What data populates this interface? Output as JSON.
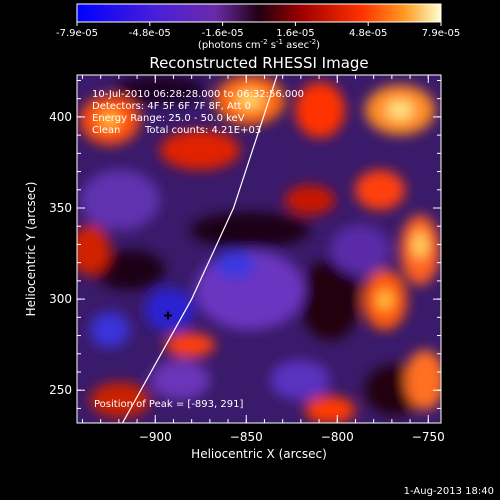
{
  "colorbar": {
    "ticks": [
      "-7.9e-05",
      "-4.8e-05",
      "-1.6e-05",
      "1.6e-05",
      "4.8e-05",
      "7.9e-05"
    ],
    "units_main": "(photons cm",
    "units_sup1": "-2",
    "units_mid": " s",
    "units_sup2": "-1",
    "units_end": " asec",
    "units_sup3": "-2",
    "units_close": ")"
  },
  "chart_data": {
    "type": "heatmap",
    "title": "Reconstructed RHESSI Image",
    "xlabel": "Heliocentric X (arcsec)",
    "ylabel": "Heliocentric Y (arcsec)",
    "xlim": [
      -943,
      -743
    ],
    "ylim": [
      232,
      423
    ],
    "xticks": [
      -900,
      -850,
      -800,
      -750
    ],
    "yticks": [
      250,
      300,
      350,
      400
    ],
    "color_range": [
      -7.9e-05,
      7.9e-05
    ],
    "limb_line": [
      [
        -918,
        232
      ],
      [
        -880,
        300
      ],
      [
        -857,
        350
      ],
      [
        -833,
        423
      ]
    ],
    "peak_marker": [
      -893,
      291
    ],
    "colors": {
      "min": "#0000ff",
      "low": "#8a2be2",
      "mid": "#2a0010",
      "high": "#ff2a00",
      "max": "#ffffd0"
    }
  },
  "annotations": {
    "line1": "10-Jul-2010 06:28:28.000 to 06:32:56.000",
    "line2": "Detectors: 4F 5F 6F 7F 8F, Att 0",
    "line3": "Energy Range: 25.0 - 50.0 keV",
    "line4_a": "Clean",
    "line4_b": "Total counts: 4.21E+03",
    "peak": "Position of Peak = [-893, 291]"
  },
  "timestamp": "1-Aug-2013 18:40"
}
